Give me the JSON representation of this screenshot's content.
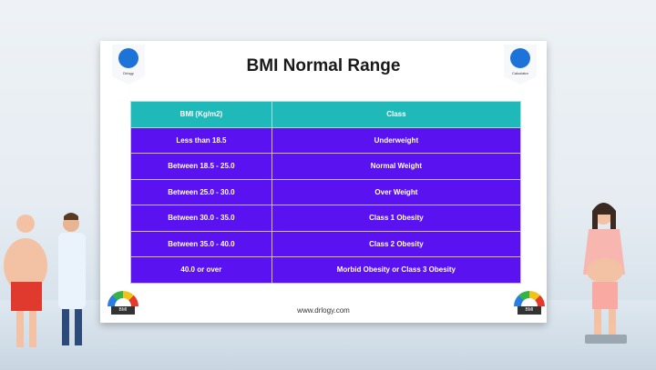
{
  "header": {
    "title": "BMI Normal Range",
    "left_badge": "Drlogy",
    "right_badge": "Calculator"
  },
  "table": {
    "columns": [
      "BMI (Kg/m2)",
      "Class"
    ],
    "rows": [
      [
        "Less than 18.5",
        "Underweight"
      ],
      [
        "Between 18.5 - 25.0",
        "Normal Weight"
      ],
      [
        "Between 25.0 - 30.0",
        "Over Weight"
      ],
      [
        "Between 30.0 - 35.0",
        "Class 1 Obesity"
      ],
      [
        "Between 35.0 - 40.0",
        "Class 2 Obesity"
      ],
      [
        "40.0 or over",
        "Morbid Obesity or Class 3 Obesity"
      ]
    ]
  },
  "footer": {
    "url": "www.drlogy.com",
    "gauge_label": "BMI"
  },
  "colors": {
    "header": "#1fb9b9",
    "rows": "#5a12f0",
    "logo": "#1e73d8"
  }
}
